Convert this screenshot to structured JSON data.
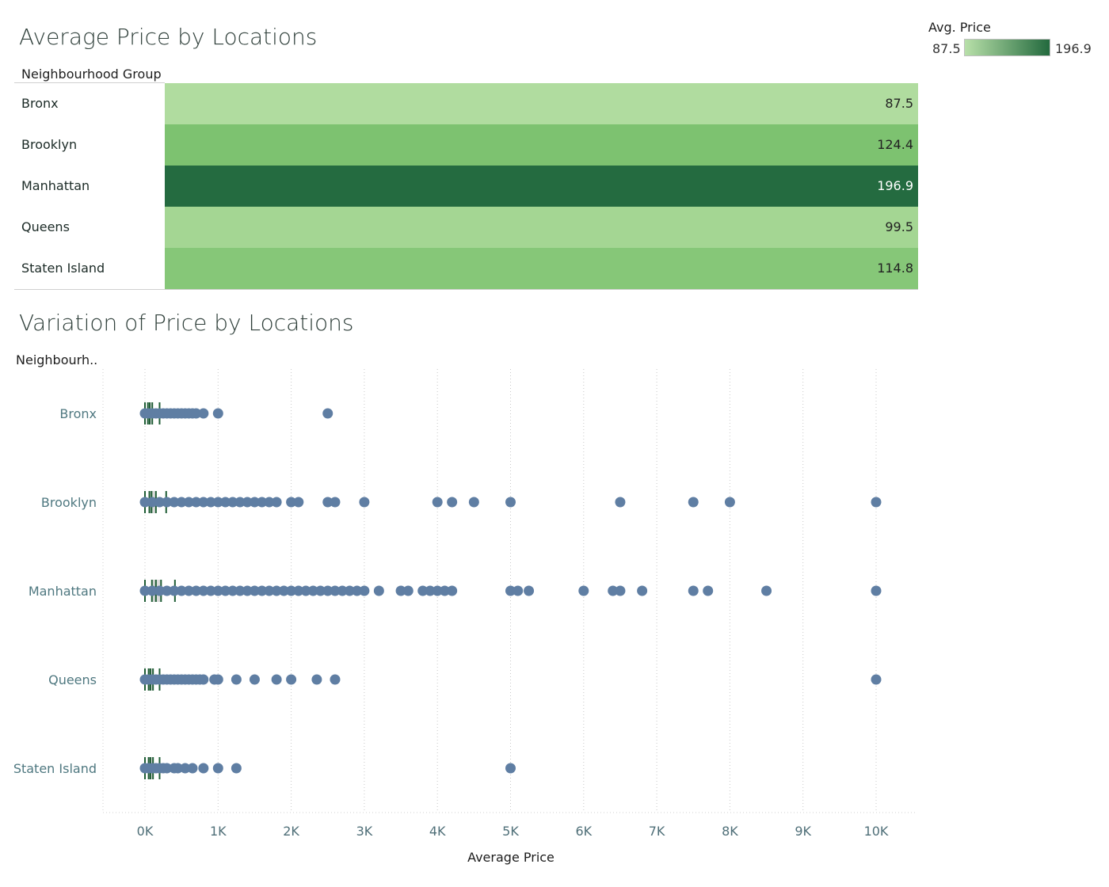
{
  "table_chart": {
    "title": "Average Price by Locations",
    "header": "Neighbourhood Group",
    "legend": {
      "title": "Avg. Price",
      "min_label": "87.5",
      "max_label": "196.9",
      "color_low": "#b8e0a9",
      "color_high": "#236a3e"
    },
    "rows": [
      {
        "label": "Bronx",
        "value_text": "87.5",
        "color": "#b0dc9f",
        "text_color": "#222222"
      },
      {
        "label": "Brooklyn",
        "value_text": "124.4",
        "color": "#7dc270",
        "text_color": "#222222"
      },
      {
        "label": "Manhattan",
        "value_text": "196.9",
        "color": "#246b40",
        "text_color": "#ffffff"
      },
      {
        "label": "Queens",
        "value_text": "99.5",
        "color": "#a4d693",
        "text_color": "#222222"
      },
      {
        "label": "Staten Island",
        "value_text": "114.8",
        "color": "#86c778",
        "text_color": "#222222"
      }
    ]
  },
  "scatter_chart": {
    "title": "Variation of Price by Locations",
    "row_header": "Neighbourh..",
    "xlabel": "Average Price"
  },
  "chart_data": [
    {
      "type": "table",
      "title": "Average Price by Locations",
      "columns": [
        "Neighbourhood Group",
        "Avg. Price"
      ],
      "categories": [
        "Bronx",
        "Brooklyn",
        "Manhattan",
        "Queens",
        "Staten Island"
      ],
      "values": [
        87.5,
        124.4,
        196.9,
        99.5,
        114.8
      ],
      "color_scale": {
        "min": 87.5,
        "max": 196.9
      }
    },
    {
      "type": "scatter",
      "title": "Variation of Price by Locations",
      "xlabel": "Average Price",
      "ylabel": "Neighbourh..",
      "xlim": [
        -550,
        10550
      ],
      "xticks": [
        0,
        1000,
        2000,
        3000,
        4000,
        5000,
        6000,
        7000,
        8000,
        9000,
        10000
      ],
      "xtick_labels": [
        "0K",
        "1K",
        "2K",
        "3K",
        "4K",
        "5K",
        "6K",
        "7K",
        "8K",
        "9K",
        "10K"
      ],
      "grid": "vertical dotted",
      "point_color": "#5f7ea3",
      "box_color": "#1f5d35",
      "series": [
        {
          "name": "Bronx",
          "box": {
            "whisker_low": 0,
            "q1": 40,
            "median": 65,
            "q3": 100,
            "whisker_high": 200
          },
          "points": [
            0,
            50,
            100,
            150,
            200,
            250,
            300,
            350,
            400,
            450,
            500,
            550,
            600,
            650,
            700,
            800,
            1000,
            2500
          ]
        },
        {
          "name": "Brooklyn",
          "box": {
            "whisker_low": 0,
            "q1": 60,
            "median": 90,
            "q3": 150,
            "whisker_high": 290
          },
          "points": [
            0,
            100,
            200,
            300,
            400,
            500,
            600,
            700,
            800,
            900,
            1000,
            1100,
            1200,
            1300,
            1400,
            1500,
            1600,
            1700,
            1800,
            2000,
            2100,
            2500,
            2600,
            3000,
            4000,
            4200,
            4500,
            5000,
            6500,
            7500,
            8000,
            10000
          ]
        },
        {
          "name": "Manhattan",
          "box": {
            "whisker_low": 0,
            "q1": 95,
            "median": 150,
            "q3": 220,
            "whisker_high": 410
          },
          "points": [
            0,
            100,
            200,
            300,
            400,
            500,
            600,
            700,
            800,
            900,
            1000,
            1100,
            1200,
            1300,
            1400,
            1500,
            1600,
            1700,
            1800,
            1900,
            2000,
            2100,
            2200,
            2300,
            2400,
            2500,
            2600,
            2700,
            2800,
            2900,
            3000,
            3200,
            3500,
            3600,
            3800,
            3900,
            4000,
            4100,
            4200,
            5000,
            5100,
            5250,
            6000,
            6400,
            6500,
            6800,
            7500,
            7700,
            8500,
            10000
          ]
        },
        {
          "name": "Queens",
          "box": {
            "whisker_low": 0,
            "q1": 50,
            "median": 75,
            "q3": 110,
            "whisker_high": 200
          },
          "points": [
            0,
            50,
            100,
            150,
            200,
            250,
            300,
            350,
            400,
            450,
            500,
            550,
            600,
            650,
            700,
            750,
            800,
            950,
            1000,
            1250,
            1500,
            1800,
            2000,
            2350,
            2600,
            10000
          ]
        },
        {
          "name": "Staten Island",
          "box": {
            "whisker_low": 0,
            "q1": 50,
            "median": 75,
            "q3": 110,
            "whisker_high": 200
          },
          "points": [
            0,
            50,
            100,
            150,
            200,
            250,
            300,
            400,
            450,
            550,
            650,
            800,
            1000,
            1250,
            5000
          ]
        }
      ]
    }
  ]
}
